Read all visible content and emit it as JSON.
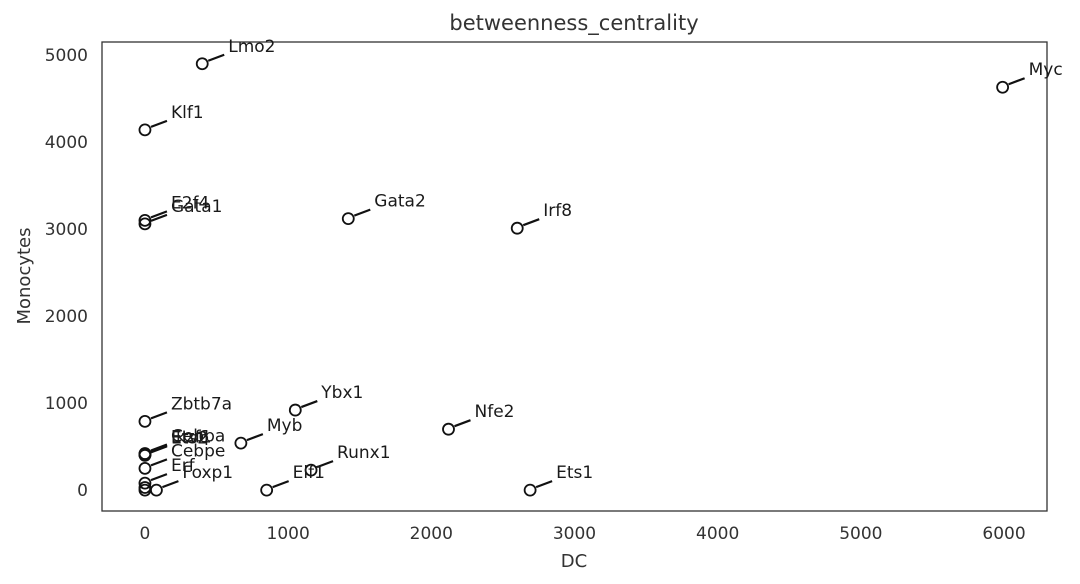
{
  "chart_data": {
    "type": "scatter",
    "title": "betweenness_centrality",
    "xlabel": "DC",
    "ylabel": "Monocytes",
    "xlim": [
      -300,
      6300
    ],
    "ylim": [
      -240,
      5150
    ],
    "xticks": [
      0,
      1000,
      2000,
      3000,
      4000,
      5000,
      6000
    ],
    "yticks": [
      0,
      1000,
      2000,
      3000,
      4000,
      5000
    ],
    "grid": false,
    "marker": "open-circle",
    "points": [
      {
        "label": "Lmo2",
        "x": 400,
        "y": 4900
      },
      {
        "label": "Myc",
        "x": 5990,
        "y": 4630
      },
      {
        "label": "Klf1",
        "x": 0,
        "y": 4140
      },
      {
        "label": "E2f4",
        "x": 0,
        "y": 3100
      },
      {
        "label": "Gata1",
        "x": 0,
        "y": 3060
      },
      {
        "label": "Gata2",
        "x": 1420,
        "y": 3120
      },
      {
        "label": "Irf8",
        "x": 2600,
        "y": 3010
      },
      {
        "label": "Zbtb7a",
        "x": 0,
        "y": 790
      },
      {
        "label": "Ybx1",
        "x": 1050,
        "y": 920
      },
      {
        "label": "Nfe2",
        "x": 2120,
        "y": 700
      },
      {
        "label": "Myb",
        "x": 670,
        "y": 540
      },
      {
        "label": "Cebpa",
        "x": 0,
        "y": 420
      },
      {
        "label": "Ikzf1",
        "x": 0,
        "y": 410
      },
      {
        "label": "Ets2",
        "x": 0,
        "y": 400
      },
      {
        "label": "Etv6",
        "x": 0,
        "y": 410
      },
      {
        "label": "Runx1",
        "x": 1160,
        "y": 230
      },
      {
        "label": "Cebpe",
        "x": 0,
        "y": 250
      },
      {
        "label": "Erf",
        "x": 0,
        "y": 80
      },
      {
        "label": "Foxp1",
        "x": 80,
        "y": 0
      },
      {
        "label": "Elf1",
        "x": 850,
        "y": 0
      },
      {
        "label": "Ets1",
        "x": 2690,
        "y": 0
      },
      {
        "label": "",
        "x": 0,
        "y": 0
      },
      {
        "label": "",
        "x": 0,
        "y": 30
      }
    ]
  }
}
